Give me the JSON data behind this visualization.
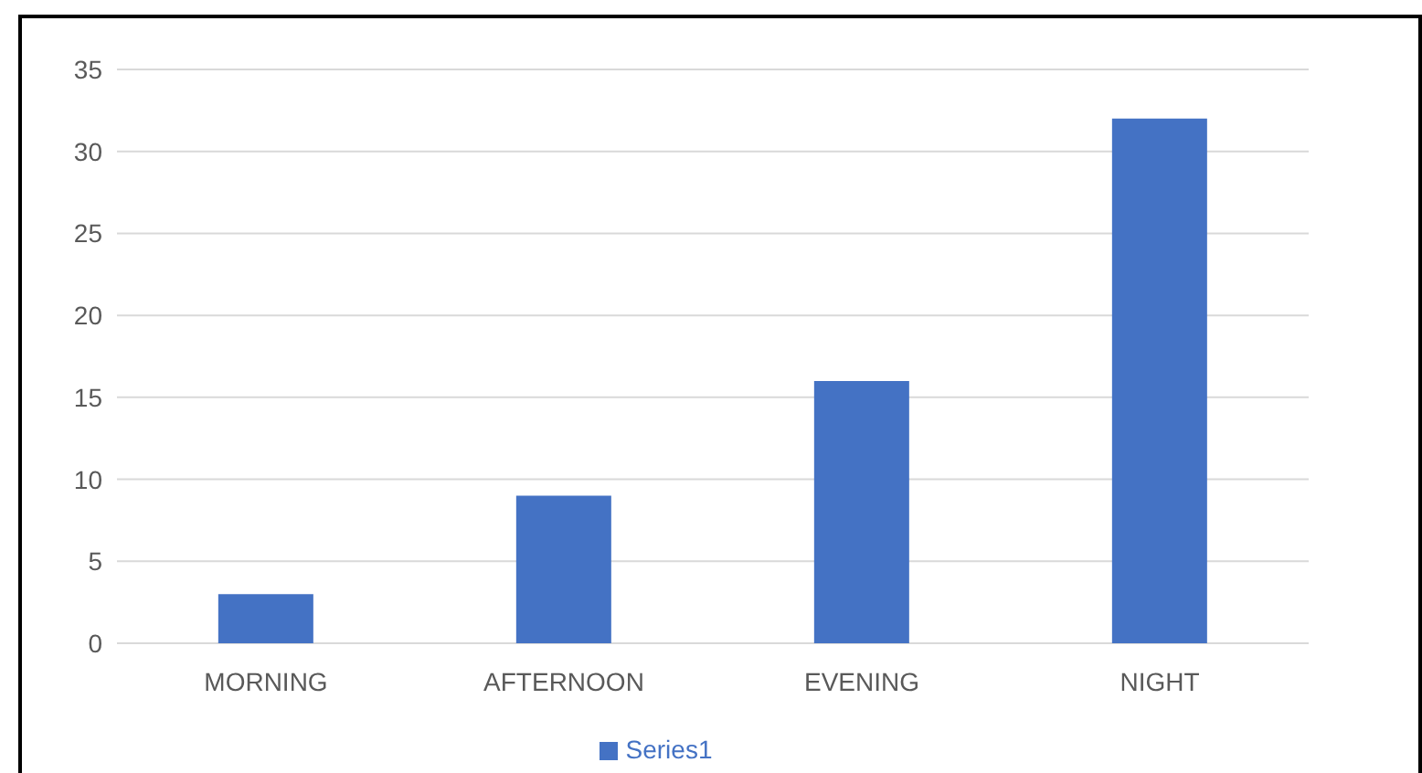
{
  "chart_data": {
    "type": "bar",
    "categories": [
      "MORNING",
      "AFTERNOON",
      "EVENING",
      "NIGHT"
    ],
    "series": [
      {
        "name": "Series1",
        "color": "#4472c4",
        "values": [
          3,
          9,
          16,
          32
        ]
      }
    ],
    "ylim": [
      0,
      35
    ],
    "yticks": [
      0,
      5,
      10,
      15,
      20,
      25,
      30,
      35
    ],
    "grid": "y",
    "legend": "bottom"
  }
}
